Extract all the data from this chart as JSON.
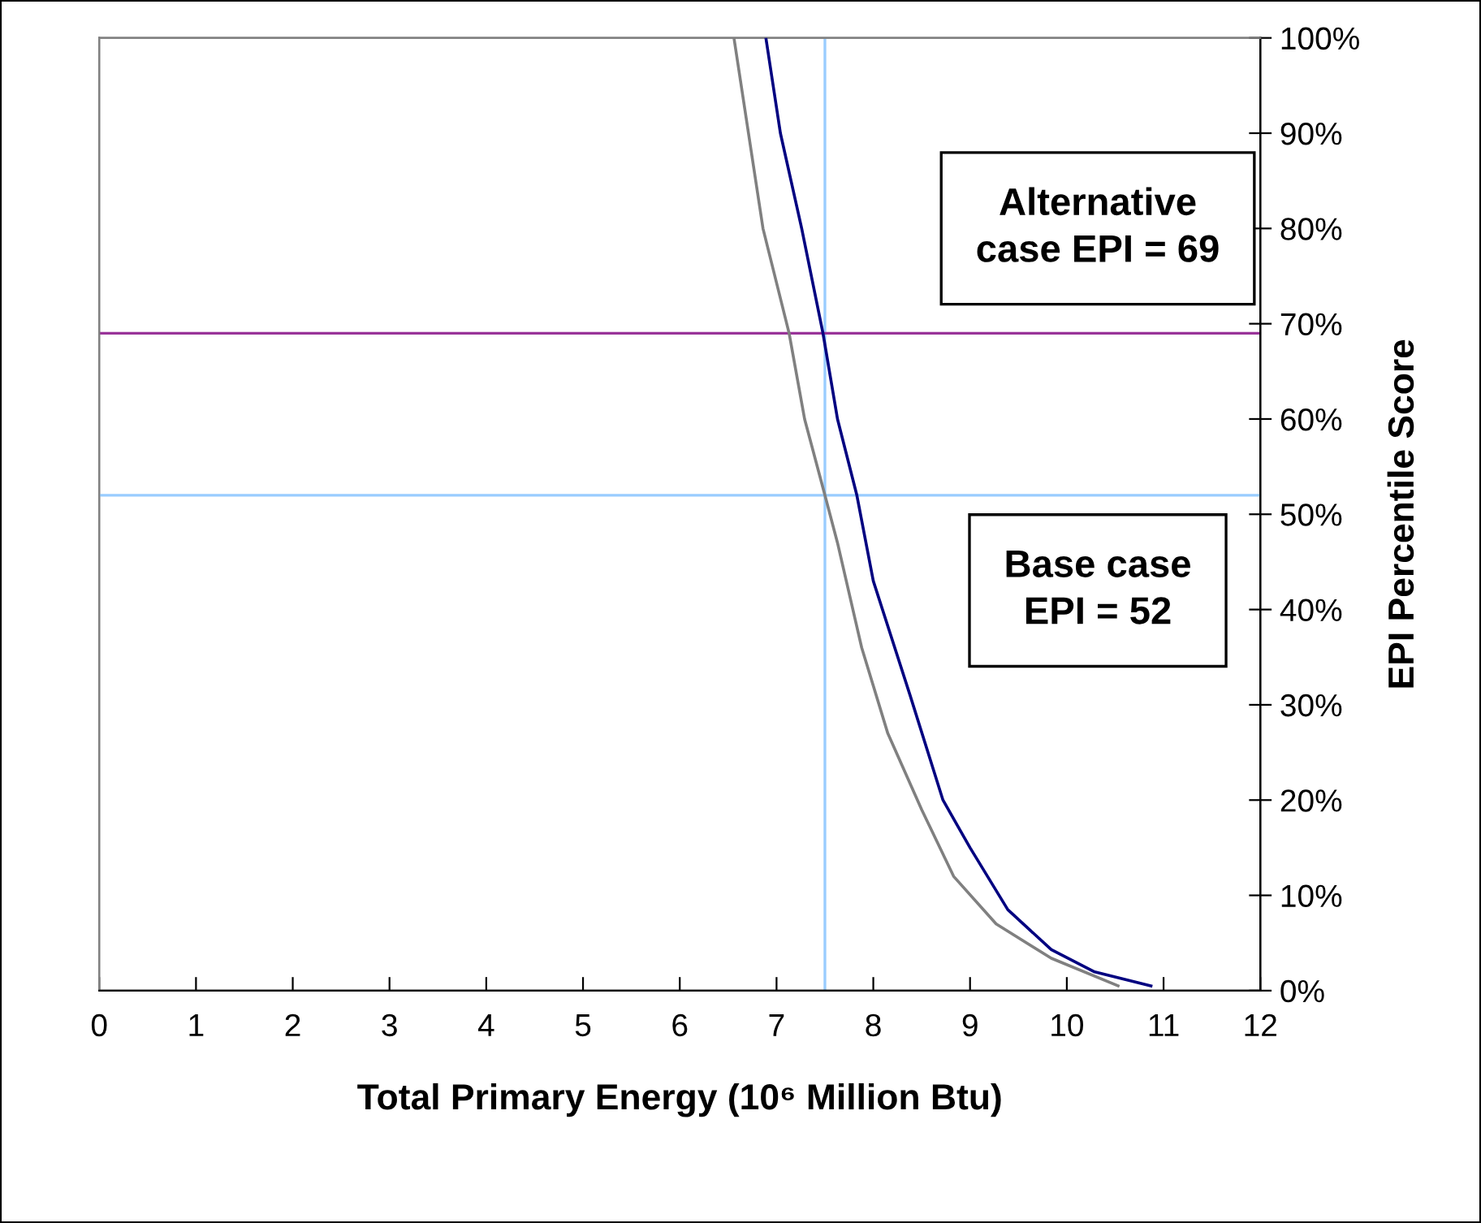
{
  "chart_data": {
    "type": "line",
    "xlabel": "Total Primary Energy (10⁶ Million Btu)",
    "y2label": "EPI Percentile Score",
    "annotations": [
      "Alternative\ncase EPI = 69",
      "Base case\nEPI = 52"
    ],
    "series": [
      {
        "color": "#808080",
        "axis": "y2",
        "x": [
          6.56,
          6.71,
          6.86,
          7.13,
          7.29,
          7.5,
          7.63,
          7.88,
          8.15,
          8.5,
          8.83,
          9.27,
          9.84,
          10.53
        ],
        "values": [
          100,
          90,
          80,
          69,
          60,
          52,
          47,
          36,
          27,
          19,
          12,
          7,
          3.4,
          0.5
        ]
      },
      {
        "color": "#000080",
        "axis": "y2",
        "x": [
          6.89,
          7.04,
          7.26,
          7.48,
          7.63,
          7.83,
          8.0,
          8.38,
          8.72,
          9.0,
          9.39,
          9.84,
          10.28,
          10.87
        ],
        "values": [
          100,
          90,
          80,
          69,
          60,
          52,
          43,
          31,
          20,
          15,
          8.5,
          4.3,
          2.0,
          0.5
        ]
      }
    ],
    "ref_lines": [
      {
        "axis": "y2",
        "value": 69,
        "color": "#993399"
      },
      {
        "axis": "y2",
        "value": 52,
        "color": "#99ccff"
      },
      {
        "axis": "x",
        "value": 7.5,
        "color": "#99ccff"
      }
    ],
    "xlim": [
      0,
      12
    ],
    "xticks": [
      0,
      1,
      2,
      3,
      4,
      5,
      6,
      7,
      8,
      9,
      10,
      11,
      12
    ],
    "y2lim": [
      0,
      100
    ],
    "y2ticks": [
      {
        "value": 0,
        "label": "0%"
      },
      {
        "value": 10,
        "label": "10%"
      },
      {
        "value": 20,
        "label": "20%"
      },
      {
        "value": 30,
        "label": "30%"
      },
      {
        "value": 40,
        "label": "40%"
      },
      {
        "value": 50,
        "label": "50%"
      },
      {
        "value": 60,
        "label": "60%"
      },
      {
        "value": 70,
        "label": "70%"
      },
      {
        "value": 80,
        "label": "80%"
      },
      {
        "value": 90,
        "label": "90%"
      },
      {
        "value": 100,
        "label": "100%"
      }
    ],
    "grid": false,
    "legend": false,
    "marker": "none",
    "line_style": "solid"
  }
}
